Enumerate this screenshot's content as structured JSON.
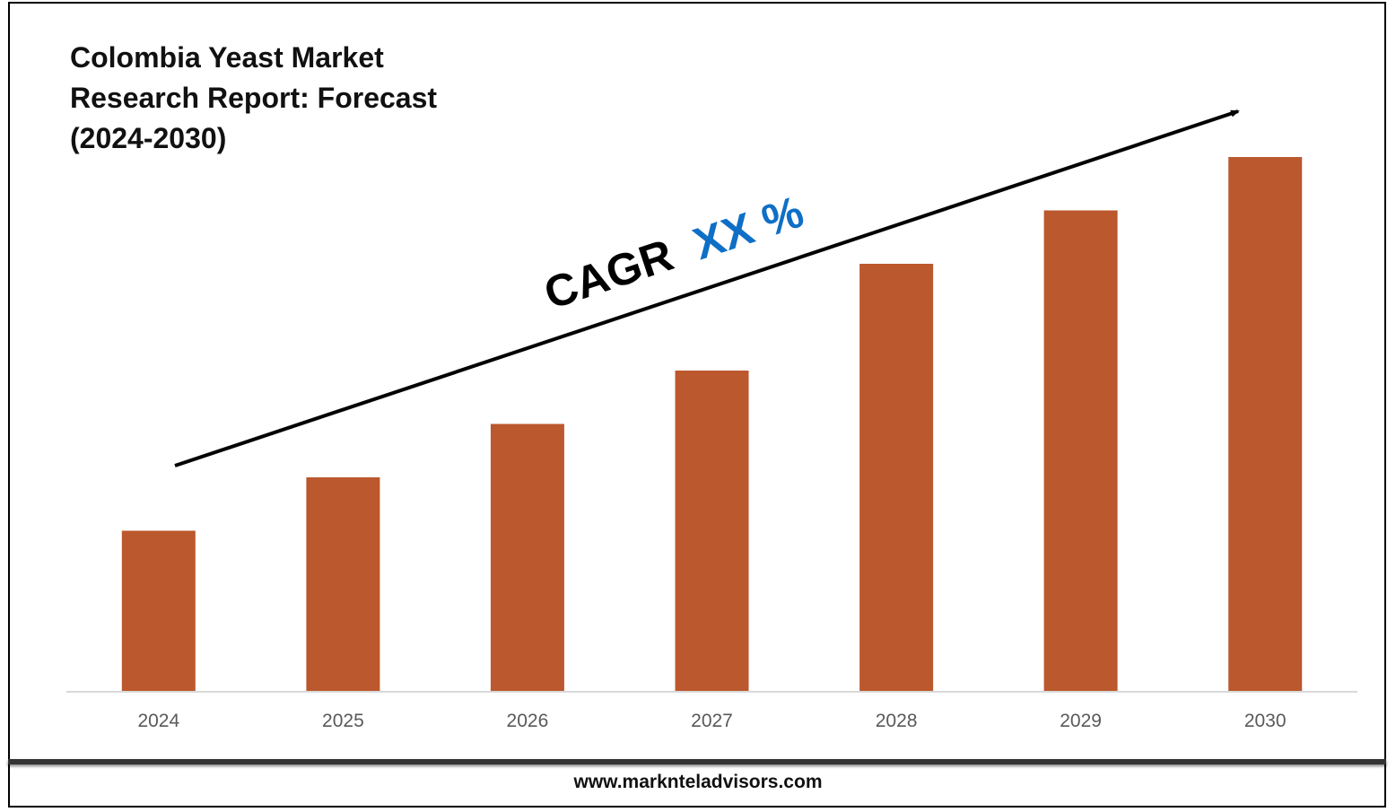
{
  "title_lines": [
    "Colombia Yeast Market",
    "Research Report: Forecast",
    "(2024-2030)"
  ],
  "cagr": {
    "label": "CAGR",
    "value": "XX %",
    "label_color": "#000000",
    "value_color": "#0f6fc6"
  },
  "footer": {
    "website": "www.marknteladvisors.com"
  },
  "colors": {
    "bar": "#bb582d",
    "axis": "#d9d9d9",
    "tick_text": "#595959",
    "arrow": "#000000"
  },
  "chart_data": {
    "type": "bar",
    "categories": [
      "2024",
      "2025",
      "2026",
      "2027",
      "2028",
      "2029",
      "2030"
    ],
    "values": [
      30,
      40,
      50,
      60,
      80,
      90,
      100
    ],
    "ylim": [
      0,
      100
    ],
    "grid": false,
    "legend": "none"
  }
}
